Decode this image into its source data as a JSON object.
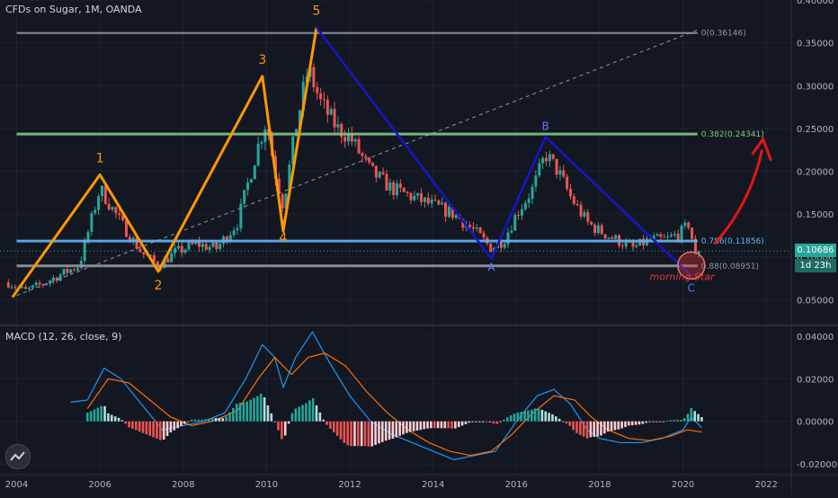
{
  "header": {
    "title": "CFDs on Sugar, 1M, OANDA"
  },
  "macd_panel": {
    "title": "MACD (12, 26, close, 9)"
  },
  "badges": {
    "last_price": "0.10686",
    "countdown": "1d 23h"
  },
  "colors": {
    "background": "#131722",
    "grid": "#1e222d",
    "up_candle": "#26a69a",
    "down_candle": "#ef5350",
    "impulse_wave": "#ff9800",
    "abc_wave": "#1515c8",
    "fib_0": "#9598a1",
    "fib_0382": "#81c784",
    "fib_0786": "#64b5f6",
    "fib_088": "#9598a1",
    "arrow": "#e51515",
    "macd_line": "#2196f3",
    "signal_line": "#ff6d00"
  },
  "chart_data": [
    {
      "type": "candlestick",
      "title": "CFDs on Sugar, 1M, OANDA",
      "ylim": [
        0.02,
        0.4
      ],
      "xlim": [
        2003.6,
        2022.6
      ],
      "y_ticks": [
        "0.40000",
        "0.35000",
        "0.30000",
        "0.25000",
        "0.20000",
        "0.15000",
        "0.10000",
        "0.05000"
      ],
      "x_ticks": [
        "2004",
        "2006",
        "2008",
        "2010",
        "2012",
        "2014",
        "2016",
        "2018",
        "2020",
        "2022"
      ],
      "price_path": [
        [
          2003.8,
          0.07
        ],
        [
          2004.2,
          0.06
        ],
        [
          2004.6,
          0.068
        ],
        [
          2005.0,
          0.078
        ],
        [
          2005.5,
          0.09
        ],
        [
          2006.0,
          0.18
        ],
        [
          2006.5,
          0.14
        ],
        [
          2007.0,
          0.105
        ],
        [
          2007.4,
          0.09
        ],
        [
          2007.8,
          0.105
        ],
        [
          2008.3,
          0.115
        ],
        [
          2008.8,
          0.11
        ],
        [
          2009.3,
          0.14
        ],
        [
          2009.8,
          0.23
        ],
        [
          2010.0,
          0.26
        ],
        [
          2010.2,
          0.2
        ],
        [
          2010.4,
          0.16
        ],
        [
          2010.7,
          0.25
        ],
        [
          2011.0,
          0.32
        ],
        [
          2011.3,
          0.28
        ],
        [
          2011.7,
          0.25
        ],
        [
          2012.0,
          0.24
        ],
        [
          2012.5,
          0.2
        ],
        [
          2013.0,
          0.18
        ],
        [
          2013.5,
          0.17
        ],
        [
          2014.0,
          0.16
        ],
        [
          2014.5,
          0.15
        ],
        [
          2015.0,
          0.13
        ],
        [
          2015.4,
          0.11
        ],
        [
          2015.7,
          0.12
        ],
        [
          2016.0,
          0.15
        ],
        [
          2016.4,
          0.18
        ],
        [
          2016.7,
          0.22
        ],
        [
          2017.0,
          0.2
        ],
        [
          2017.3,
          0.17
        ],
        [
          2017.7,
          0.14
        ],
        [
          2018.0,
          0.13
        ],
        [
          2018.4,
          0.12
        ],
        [
          2018.8,
          0.11
        ],
        [
          2019.2,
          0.12
        ],
        [
          2019.6,
          0.12
        ],
        [
          2020.0,
          0.13
        ],
        [
          2020.15,
          0.14
        ],
        [
          2020.3,
          0.1
        ],
        [
          2020.45,
          0.107
        ]
      ],
      "last_price": 0.10686,
      "fib_levels": [
        {
          "label": "0(0.36146)",
          "value": 0.36146
        },
        {
          "label": "0.382(0.24341)",
          "value": 0.24341
        },
        {
          "label": "0.786(0.11856)",
          "value": 0.11856
        },
        {
          "label": "0.88(0.08951)",
          "value": 0.08951
        }
      ],
      "impulse_wave": [
        {
          "label": "",
          "x": 2003.9,
          "y": 0.053
        },
        {
          "label": "1",
          "x": 2006.0,
          "y": 0.196
        },
        {
          "label": "2",
          "x": 2007.4,
          "y": 0.083
        },
        {
          "label": "3",
          "x": 2009.9,
          "y": 0.311
        },
        {
          "label": "4",
          "x": 2010.4,
          "y": 0.13
        },
        {
          "label": "5",
          "x": 2011.2,
          "y": 0.368
        }
      ],
      "abc_wave": [
        {
          "label": "",
          "x": 2011.2,
          "y": 0.368
        },
        {
          "label": "A",
          "x": 2015.4,
          "y": 0.098
        },
        {
          "label": "B",
          "x": 2016.7,
          "y": 0.24
        },
        {
          "label": "C",
          "x": 2020.2,
          "y": 0.078
        }
      ],
      "trendline": [
        [
          2004.0,
          0.055
        ],
        [
          2020.35,
          0.365
        ]
      ],
      "annotations": [
        {
          "text": "morning Star",
          "x": 2019.2,
          "y": 0.073
        }
      ]
    },
    {
      "type": "macd",
      "title": "MACD (12, 26, close, 9)",
      "ylim": [
        -0.025,
        0.045
      ],
      "y_ticks": [
        "0.04000",
        "0.02000",
        "0.00000",
        "-0.02000"
      ],
      "macd_line": [
        [
          2005.3,
          0.009
        ],
        [
          2005.7,
          0.01
        ],
        [
          2006.1,
          0.025
        ],
        [
          2006.5,
          0.02
        ],
        [
          2007.0,
          0.008
        ],
        [
          2007.5,
          -0.004
        ],
        [
          2008.0,
          -0.002
        ],
        [
          2008.5,
          0.0
        ],
        [
          2009.0,
          0.004
        ],
        [
          2009.5,
          0.02
        ],
        [
          2009.9,
          0.036
        ],
        [
          2010.2,
          0.03
        ],
        [
          2010.4,
          0.016
        ],
        [
          2010.7,
          0.03
        ],
        [
          2011.1,
          0.042
        ],
        [
          2011.5,
          0.028
        ],
        [
          2012.0,
          0.012
        ],
        [
          2012.5,
          0.0
        ],
        [
          2013.0,
          -0.006
        ],
        [
          2013.5,
          -0.01
        ],
        [
          2014.0,
          -0.014
        ],
        [
          2014.5,
          -0.018
        ],
        [
          2015.0,
          -0.016
        ],
        [
          2015.5,
          -0.014
        ],
        [
          2016.0,
          0.0
        ],
        [
          2016.5,
          0.012
        ],
        [
          2016.9,
          0.015
        ],
        [
          2017.3,
          0.008
        ],
        [
          2017.7,
          -0.004
        ],
        [
          2018.0,
          -0.008
        ],
        [
          2018.5,
          -0.01
        ],
        [
          2019.0,
          -0.01
        ],
        [
          2019.5,
          -0.008
        ],
        [
          2020.0,
          -0.004
        ],
        [
          2020.2,
          0.002
        ],
        [
          2020.45,
          -0.003
        ]
      ],
      "signal_line": [
        [
          2005.7,
          0.006
        ],
        [
          2006.2,
          0.02
        ],
        [
          2006.7,
          0.018
        ],
        [
          2007.2,
          0.01
        ],
        [
          2007.7,
          0.002
        ],
        [
          2008.2,
          -0.002
        ],
        [
          2008.7,
          0.0
        ],
        [
          2009.3,
          0.005
        ],
        [
          2009.8,
          0.02
        ],
        [
          2010.2,
          0.03
        ],
        [
          2010.6,
          0.022
        ],
        [
          2011.0,
          0.03
        ],
        [
          2011.4,
          0.032
        ],
        [
          2011.9,
          0.026
        ],
        [
          2012.4,
          0.014
        ],
        [
          2012.9,
          0.004
        ],
        [
          2013.4,
          -0.004
        ],
        [
          2013.9,
          -0.01
        ],
        [
          2014.4,
          -0.014
        ],
        [
          2014.9,
          -0.016
        ],
        [
          2015.4,
          -0.014
        ],
        [
          2015.9,
          -0.006
        ],
        [
          2016.4,
          0.004
        ],
        [
          2016.9,
          0.012
        ],
        [
          2017.4,
          0.01
        ],
        [
          2017.8,
          0.002
        ],
        [
          2018.2,
          -0.004
        ],
        [
          2018.7,
          -0.008
        ],
        [
          2019.2,
          -0.009
        ],
        [
          2019.7,
          -0.007
        ],
        [
          2020.1,
          -0.004
        ],
        [
          2020.45,
          -0.005
        ]
      ],
      "histogram_from": "macd_line minus signal_line"
    }
  ]
}
